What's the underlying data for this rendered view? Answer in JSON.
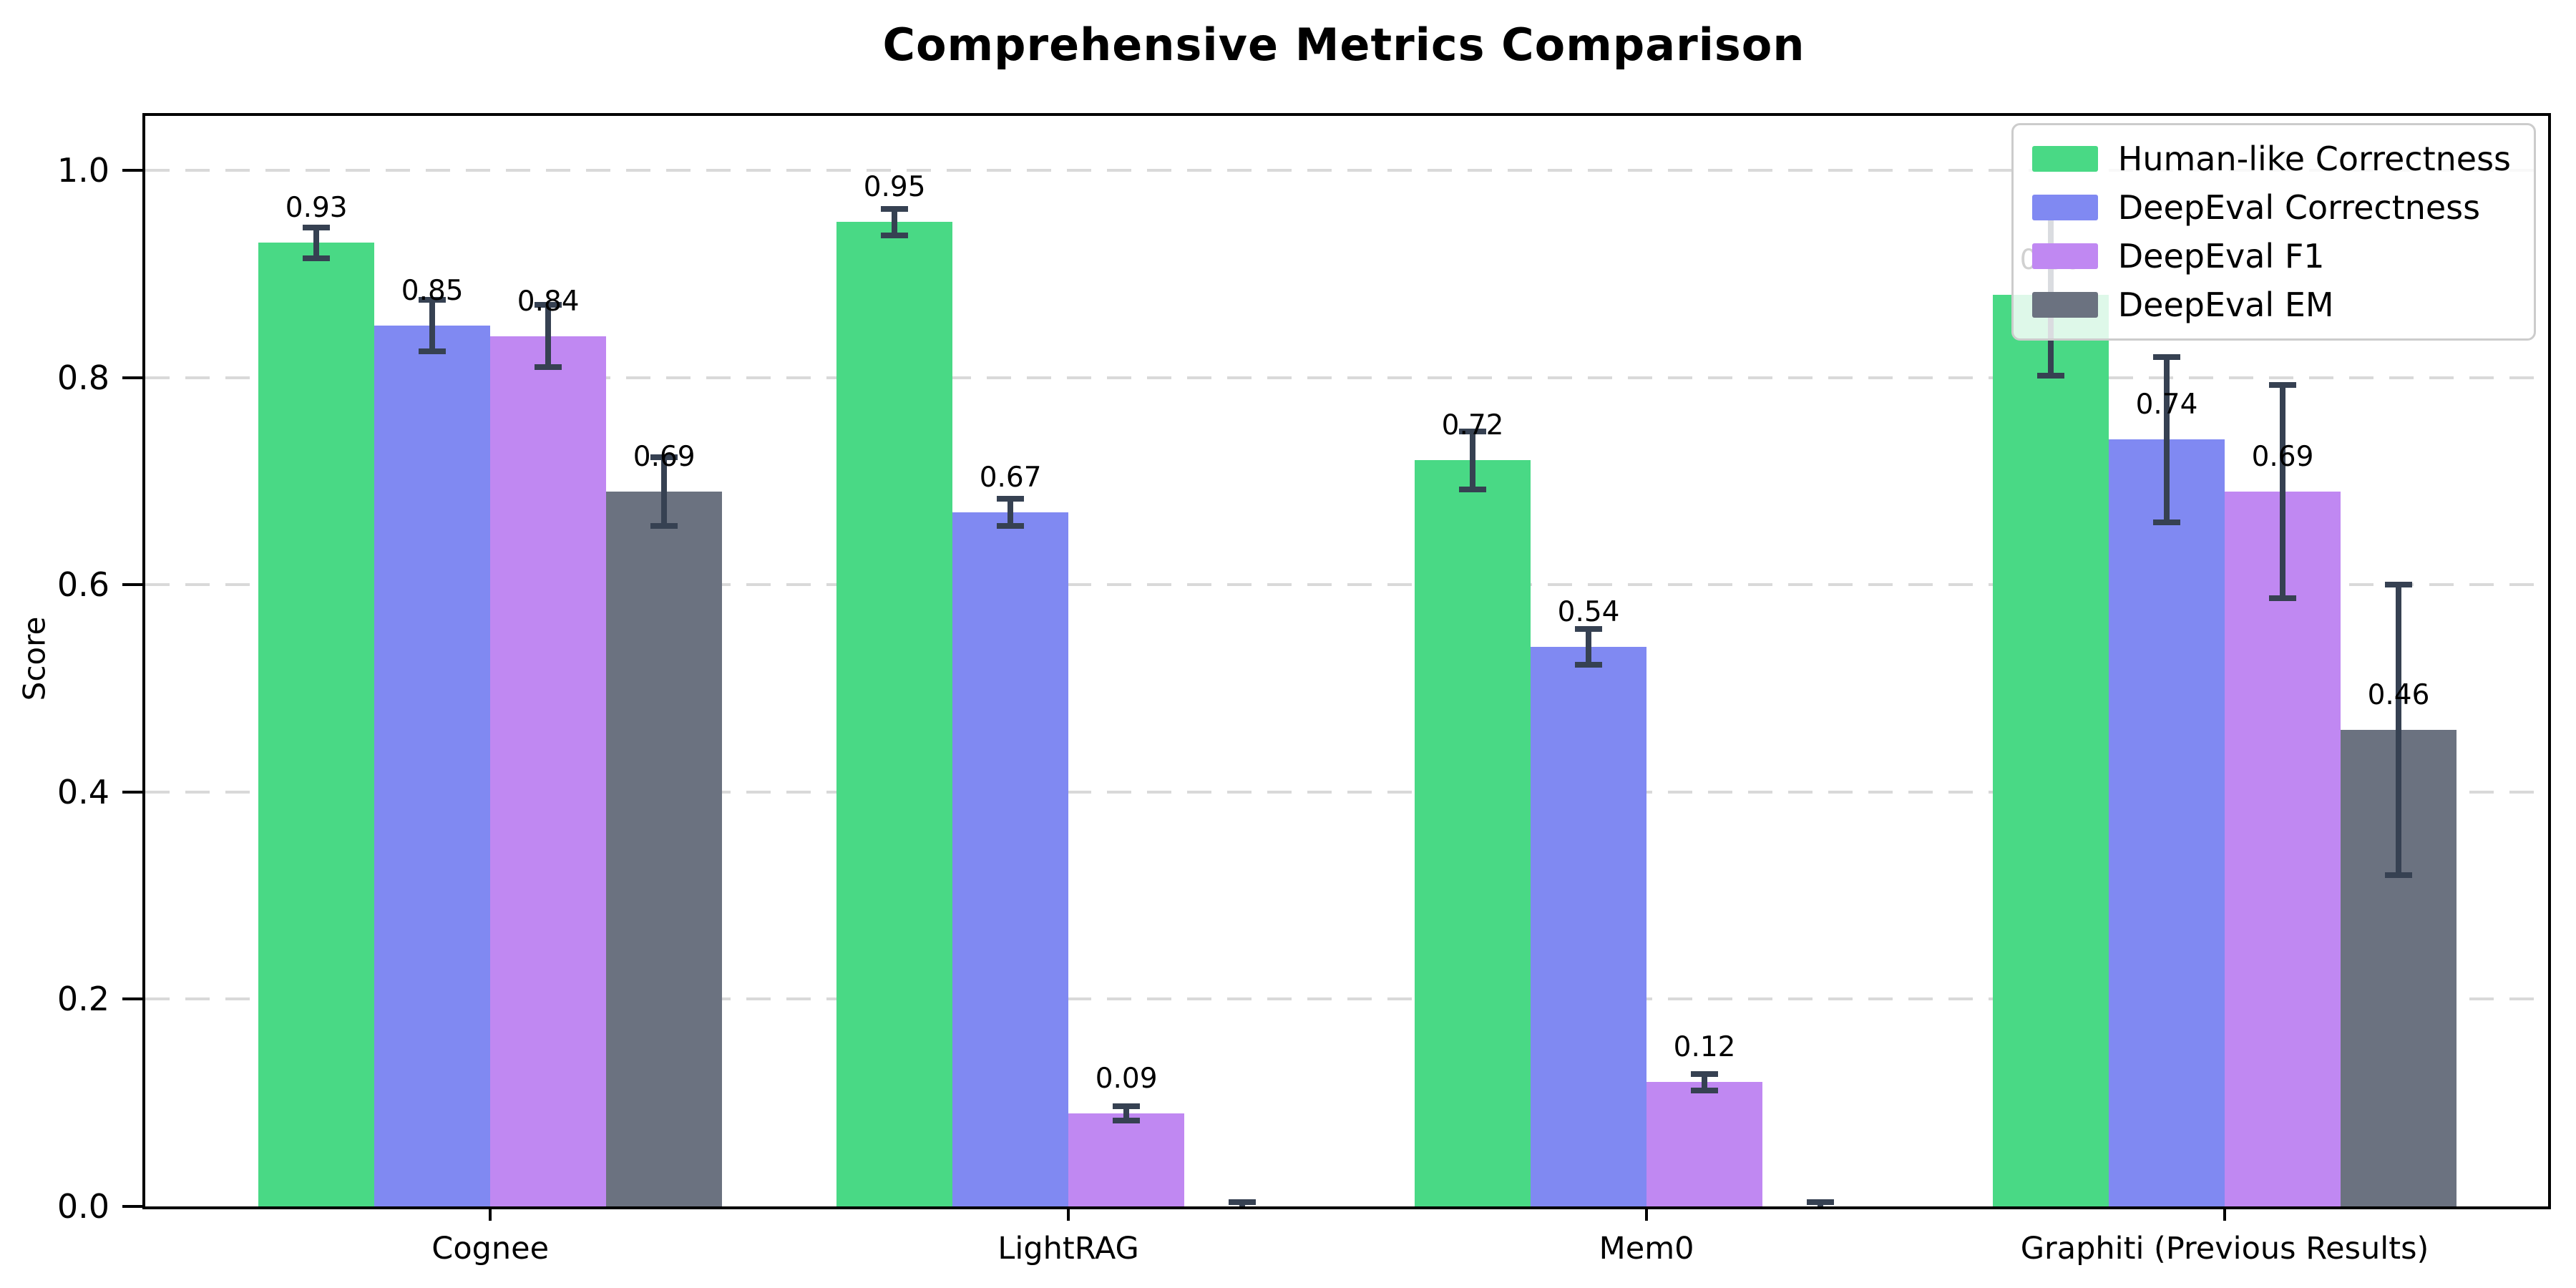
{
  "title": "Comprehensive Metrics Comparison",
  "chart_data": {
    "type": "bar",
    "title": "Comprehensive Metrics Comparison",
    "xlabel": "",
    "ylabel": "Score",
    "categories": [
      "Cognee",
      "LightRAG",
      "Mem0",
      "Graphiti (Previous Results)"
    ],
    "series": [
      {
        "name": "Human-like Correctness",
        "color": "#49d985",
        "values": [
          0.93,
          0.95,
          0.72,
          0.88
        ],
        "errors": [
          0.015,
          0.013,
          0.028,
          0.078
        ],
        "labels": [
          "0.93",
          "0.95",
          "0.72",
          "0.88"
        ]
      },
      {
        "name": "DeepEval Correctness",
        "color": "#8089f2",
        "values": [
          0.85,
          0.67,
          0.54,
          0.74
        ],
        "errors": [
          0.025,
          0.013,
          0.017,
          0.08
        ],
        "labels": [
          "0.85",
          "0.67",
          "0.54",
          "0.74"
        ]
      },
      {
        "name": "DeepEval F1",
        "color": "#c088f2",
        "values": [
          0.84,
          0.09,
          0.12,
          0.69
        ],
        "errors": [
          0.03,
          0.007,
          0.008,
          0.103
        ],
        "labels": [
          "0.84",
          "0.09",
          "0.12",
          "0.69"
        ]
      },
      {
        "name": "DeepEval EM",
        "color": "#6b7280",
        "values": [
          0.69,
          0.0,
          0.0,
          0.46
        ],
        "errors": [
          0.033,
          0.004,
          0.004,
          0.14
        ],
        "labels": [
          "0.69",
          "",
          "",
          "0.46"
        ]
      }
    ],
    "yticks": {
      "values": [
        0.0,
        0.2,
        0.4,
        0.6,
        0.8,
        1.0
      ],
      "labels": [
        "0.0",
        "0.2",
        "0.4",
        "0.6",
        "0.8",
        "1.0"
      ]
    },
    "ylim": [
      0,
      1.05
    ],
    "grid": "horizontal-dashed",
    "gridline_color": "#d9d9d9",
    "error_bar_color": "#364152",
    "legend": {
      "position": "upper right"
    }
  }
}
